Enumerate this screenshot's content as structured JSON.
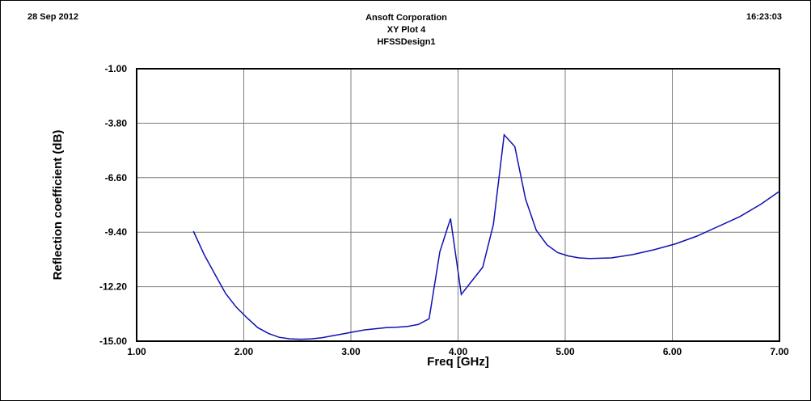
{
  "header": {
    "date": "28 Sep 2012",
    "company": "Ansoft Corporation",
    "plot_title": "XY Plot 4",
    "design": "HFSSDesign1",
    "time": "16:23:03"
  },
  "chart_data": {
    "type": "line",
    "title": "XY Plot 4",
    "xlabel": "Freq [GHz]",
    "ylabel": "Reflection coefficient (dB)",
    "xlim": [
      1.0,
      7.0
    ],
    "ylim": [
      -15.0,
      -1.0
    ],
    "x_ticks": [
      "1.00",
      "2.00",
      "3.00",
      "4.00",
      "5.00",
      "6.00",
      "7.00"
    ],
    "y_ticks": [
      "-1.00",
      "-3.80",
      "-6.60",
      "-9.40",
      "-12.20",
      "-15.00"
    ],
    "grid": true,
    "legend": "none",
    "colors": {
      "line": "#1010b0",
      "grid": "#7f7f7f",
      "axis": "#000000"
    },
    "series": [
      {
        "x": [
          1.53,
          1.63,
          1.73,
          1.83,
          1.93,
          2.03,
          2.13,
          2.23,
          2.33,
          2.43,
          2.53,
          2.63,
          2.73,
          2.83,
          2.93,
          3.03,
          3.13,
          3.23,
          3.33,
          3.43,
          3.53,
          3.63,
          3.73,
          3.83,
          3.93,
          4.03,
          4.13,
          4.23,
          4.33,
          4.43,
          4.53,
          4.63,
          4.73,
          4.83,
          4.93,
          5.03,
          5.13,
          5.23,
          5.43,
          5.63,
          5.83,
          6.03,
          6.23,
          6.43,
          6.63,
          6.83,
          7.0
        ],
        "y": [
          -9.35,
          -10.55,
          -11.55,
          -12.55,
          -13.25,
          -13.8,
          -14.3,
          -14.6,
          -14.8,
          -14.88,
          -14.9,
          -14.88,
          -14.82,
          -14.72,
          -14.62,
          -14.52,
          -14.42,
          -14.36,
          -14.3,
          -14.28,
          -14.24,
          -14.14,
          -13.85,
          -10.4,
          -8.7,
          -12.6,
          -11.9,
          -11.2,
          -9.0,
          -4.4,
          -5.0,
          -7.7,
          -9.3,
          -10.05,
          -10.45,
          -10.62,
          -10.72,
          -10.75,
          -10.72,
          -10.55,
          -10.3,
          -10.0,
          -9.6,
          -9.1,
          -8.6,
          -7.95,
          -7.3
        ]
      }
    ]
  }
}
